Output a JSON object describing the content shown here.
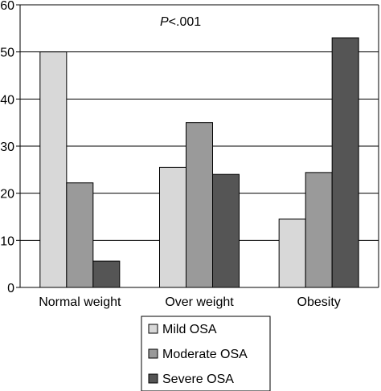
{
  "chart_data": {
    "type": "bar",
    "title": "",
    "xlabel": "",
    "ylabel": "",
    "annotation": "P<.001",
    "categories": [
      "Normal weight",
      "Over weight",
      "Obesity"
    ],
    "ylim": [
      0,
      60
    ],
    "yticks": [
      0,
      10,
      20,
      30,
      40,
      50,
      60
    ],
    "grid": true,
    "legend_position": "bottom",
    "series": [
      {
        "name": "Mild OSA",
        "values": [
          50,
          25.5,
          14.5
        ],
        "color": "#d8d8d8"
      },
      {
        "name": "Moderate OSA",
        "values": [
          22.2,
          35,
          24.4
        ],
        "color": "#9a9a9a"
      },
      {
        "name": "Severe OSA",
        "values": [
          5.6,
          24,
          53
        ],
        "color": "#555555"
      }
    ]
  }
}
